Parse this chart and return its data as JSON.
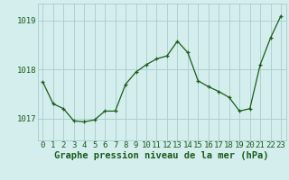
{
  "x": [
    0,
    1,
    2,
    3,
    4,
    5,
    6,
    7,
    8,
    9,
    10,
    11,
    12,
    13,
    14,
    15,
    16,
    17,
    18,
    19,
    20,
    21,
    22,
    23
  ],
  "y": [
    1017.75,
    1017.3,
    1017.2,
    1016.95,
    1016.93,
    1016.97,
    1017.15,
    1017.15,
    1017.7,
    1017.95,
    1018.1,
    1018.22,
    1018.28,
    1018.58,
    1018.35,
    1017.77,
    1017.65,
    1017.55,
    1017.43,
    1017.15,
    1017.2,
    1018.1,
    1018.65,
    1019.1
  ],
  "xlim": [
    -0.5,
    23.5
  ],
  "ylim": [
    1016.55,
    1019.35
  ],
  "yticks": [
    1017,
    1018,
    1019
  ],
  "xticks": [
    0,
    1,
    2,
    3,
    4,
    5,
    6,
    7,
    8,
    9,
    10,
    11,
    12,
    13,
    14,
    15,
    16,
    17,
    18,
    19,
    20,
    21,
    22,
    23
  ],
  "xlabel": "Graphe pression niveau de la mer (hPa)",
  "line_color": "#1a5c1a",
  "marker": "+",
  "bg_color": "#d4eeee",
  "grid_color": "#a8cccc",
  "label_color": "#1a5c1a",
  "tick_fontsize": 6.5,
  "xlabel_fontsize": 7.5
}
